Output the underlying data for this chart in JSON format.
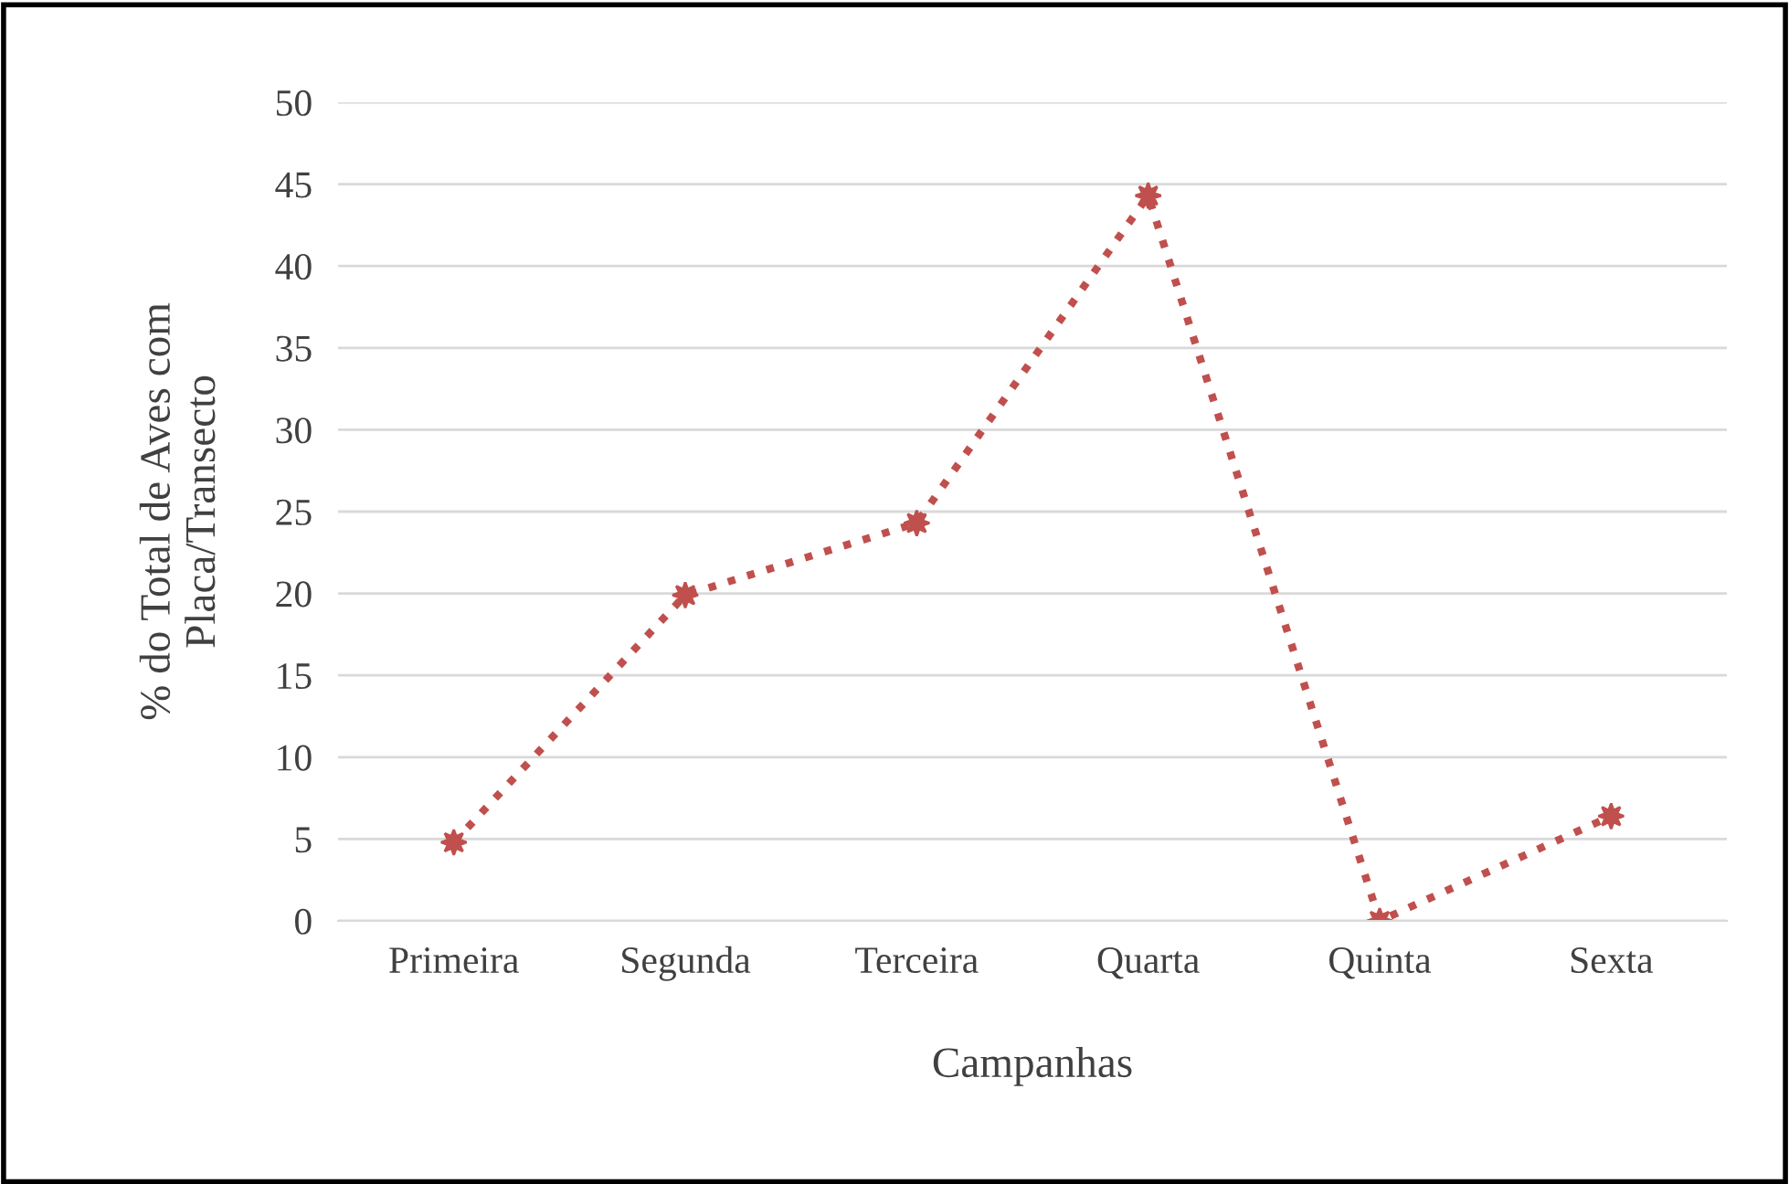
{
  "chart_data": {
    "type": "line",
    "xlabel": "Campanhas",
    "ylabel": "% do Total de Aves com\nPlaca/Transecto",
    "categories": [
      "Primeira",
      "Segunda",
      "Terceira",
      "Quarta",
      "Quinta",
      "Sexta"
    ],
    "series": [
      {
        "color": "#c0504d",
        "values": [
          4.8,
          19.9,
          24.3,
          44.3,
          0,
          6.4
        ]
      }
    ],
    "ylim": [
      0,
      50
    ],
    "yticks": [
      0,
      5,
      10,
      15,
      20,
      25,
      30,
      35,
      40,
      45,
      50
    ],
    "grid": "y",
    "marker": "star",
    "line_style": "dotted"
  }
}
